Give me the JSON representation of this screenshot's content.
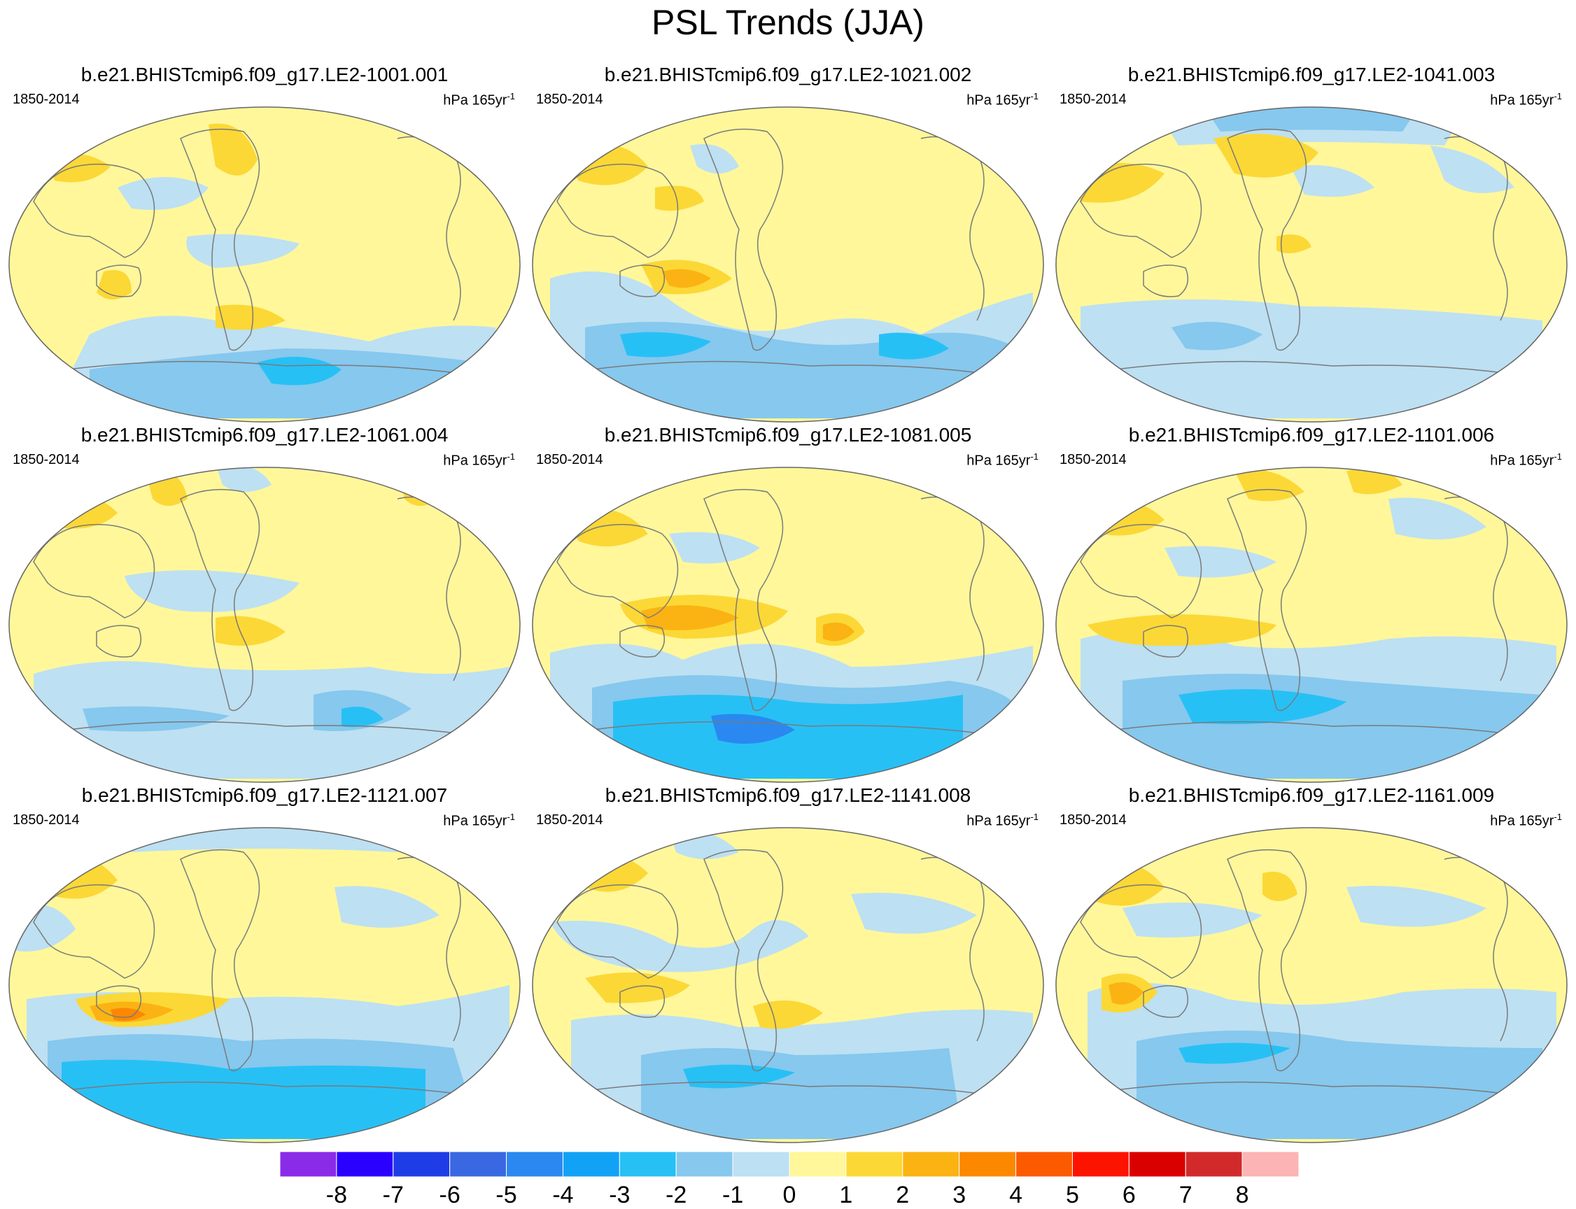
{
  "title": "PSL Trends (JJA)",
  "panels": [
    {
      "name": "b.e21.BHISTcmip6.f09_g17.LE2-1001.001",
      "period": "1850-2014",
      "units": "hPa 165yr",
      "units_sup": "-1"
    },
    {
      "name": "b.e21.BHISTcmip6.f09_g17.LE2-1021.002",
      "period": "1850-2014",
      "units": "hPa 165yr",
      "units_sup": "-1"
    },
    {
      "name": "b.e21.BHISTcmip6.f09_g17.LE2-1041.003",
      "period": "1850-2014",
      "units": "hPa 165yr",
      "units_sup": "-1"
    },
    {
      "name": "b.e21.BHISTcmip6.f09_g17.LE2-1061.004",
      "period": "1850-2014",
      "units": "hPa 165yr",
      "units_sup": "-1"
    },
    {
      "name": "b.e21.BHISTcmip6.f09_g17.LE2-1081.005",
      "period": "1850-2014",
      "units": "hPa 165yr",
      "units_sup": "-1"
    },
    {
      "name": "b.e21.BHISTcmip6.f09_g17.LE2-1101.006",
      "period": "1850-2014",
      "units": "hPa 165yr",
      "units_sup": "-1"
    },
    {
      "name": "b.e21.BHISTcmip6.f09_g17.LE2-1121.007",
      "period": "1850-2014",
      "units": "hPa 165yr",
      "units_sup": "-1"
    },
    {
      "name": "b.e21.BHISTcmip6.f09_g17.LE2-1141.008",
      "period": "1850-2014",
      "units": "hPa 165yr",
      "units_sup": "-1"
    },
    {
      "name": "b.e21.BHISTcmip6.f09_g17.LE2-1161.009",
      "period": "1850-2014",
      "units": "hPa 165yr",
      "units_sup": "-1"
    }
  ],
  "colorbar": {
    "labels": [
      "-8",
      "-7",
      "-6",
      "-5",
      "-4",
      "-3",
      "-2",
      "-1",
      "0",
      "1",
      "2",
      "3",
      "4",
      "5",
      "6",
      "7",
      "8"
    ],
    "colors": [
      "#8a2be8",
      "#2a00ff",
      "#1f3de6",
      "#3a68e2",
      "#2a88f0",
      "#12a2f5",
      "#27c0f5",
      "#86c8ee",
      "#bde0f2",
      "#fff79a",
      "#fcd836",
      "#fbb313",
      "#fc8800",
      "#fc5a00",
      "#fc1400",
      "#da0000",
      "#d22a2a",
      "#fcb4b4"
    ]
  },
  "map_colors": {
    "neutral": "#fff79a",
    "neg1": "#bde0f2",
    "neg2": "#86c8ee",
    "neg3": "#27c0f5",
    "neg4": "#2a88f0",
    "pos1": "#fcd836",
    "pos2": "#fbb313",
    "pos3": "#fc8800",
    "coast": "#7a7a7a"
  }
}
